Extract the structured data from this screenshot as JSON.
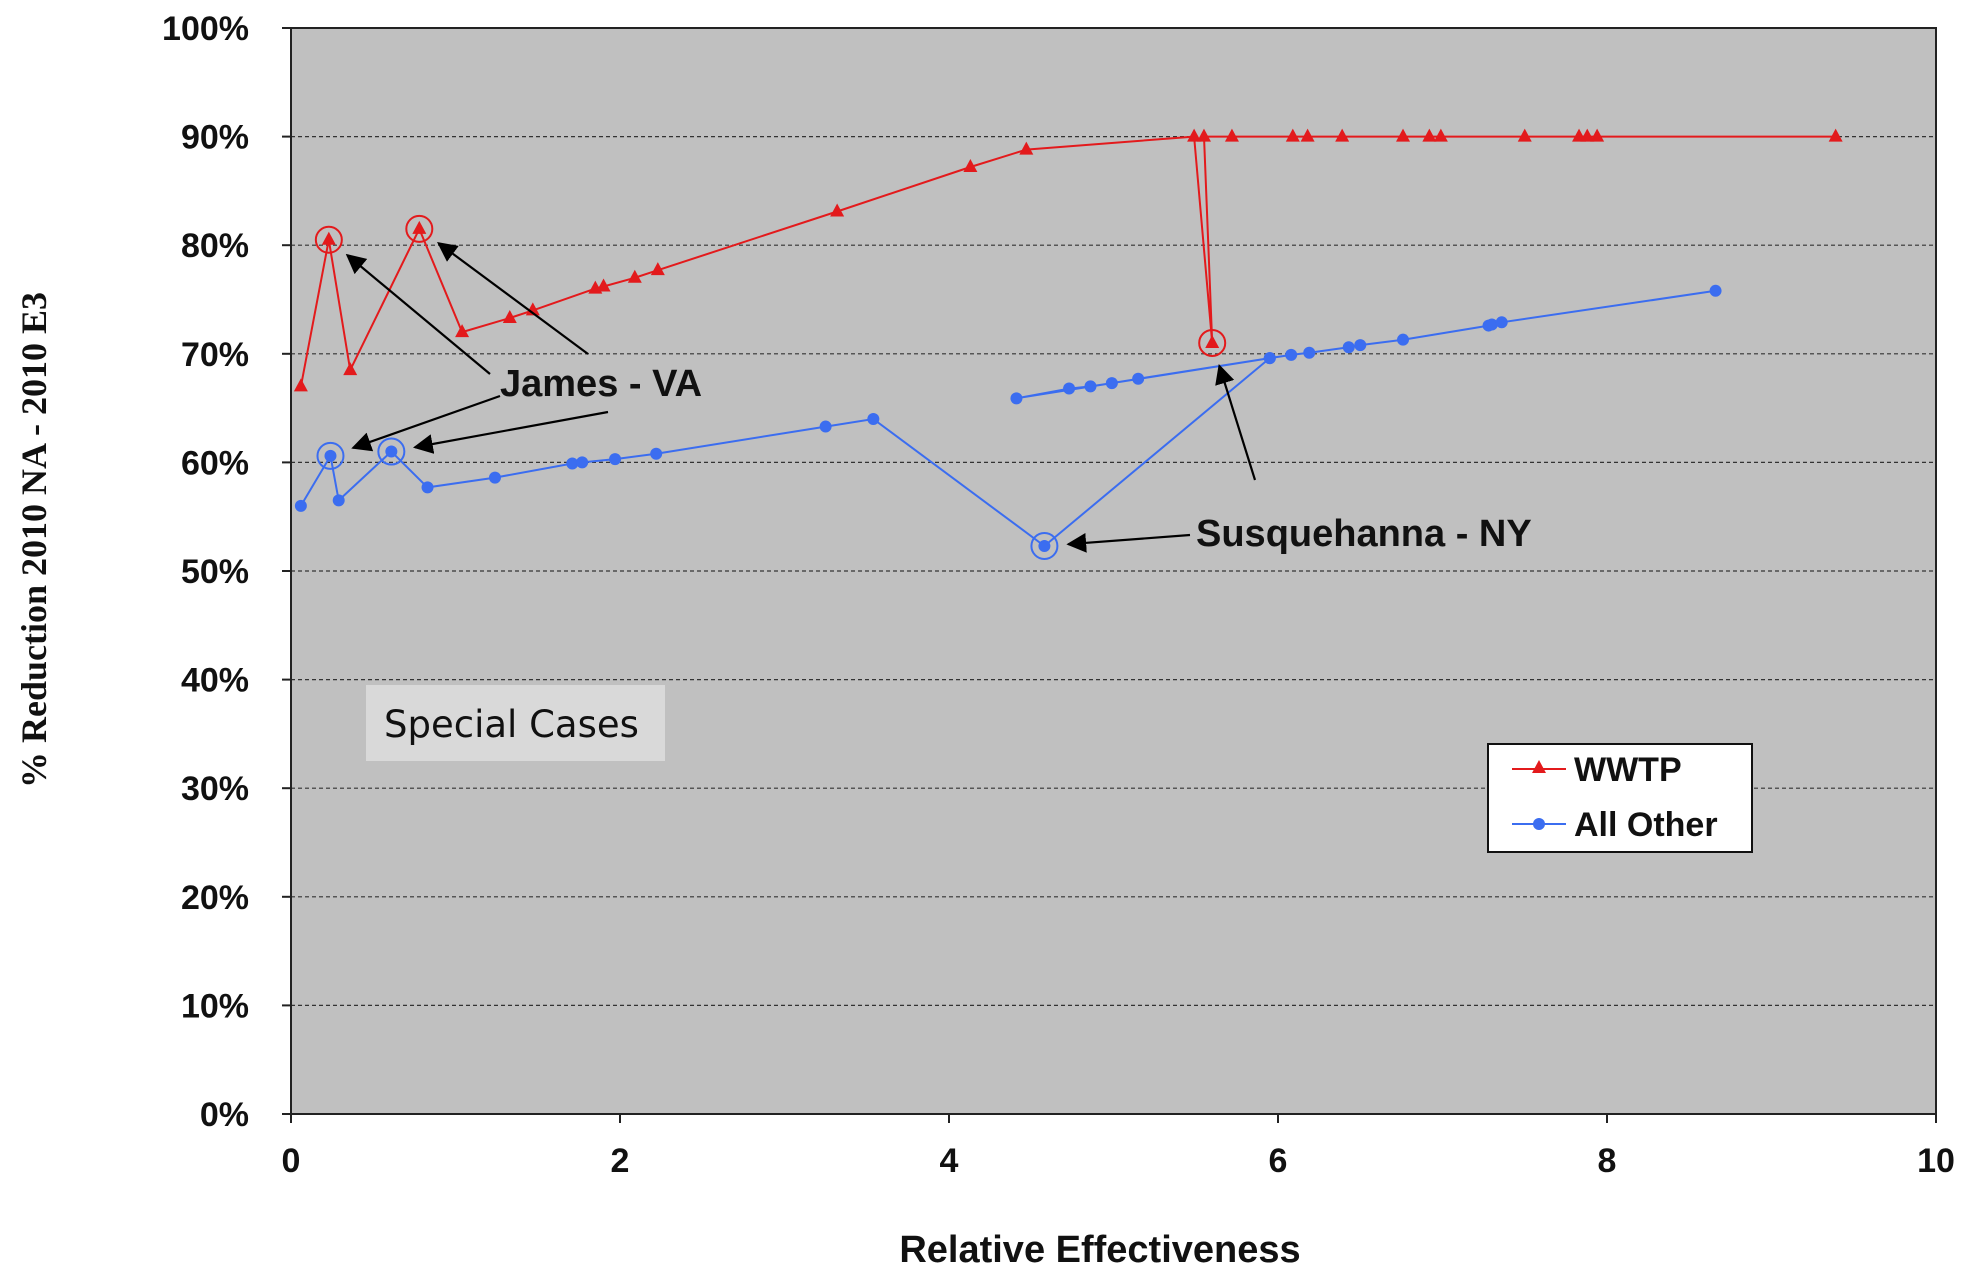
{
  "chart_data": {
    "type": "line",
    "title": "",
    "xlabel": "Relative Effectiveness",
    "ylabel": "% Reduction  2010 NA - 2010 E3",
    "xlim": [
      0,
      10
    ],
    "ylim": [
      0,
      100
    ],
    "x_ticks": [
      0,
      2,
      4,
      6,
      8,
      10
    ],
    "x_tick_labels": [
      "0",
      "2",
      "4",
      "6",
      "8",
      "10"
    ],
    "y_ticks": [
      0,
      10,
      20,
      30,
      40,
      50,
      60,
      70,
      80,
      90,
      100
    ],
    "y_tick_labels": [
      "0%",
      "10%",
      "20%",
      "30%",
      "40%",
      "50%",
      "60%",
      "70%",
      "80%",
      "90%",
      "100%"
    ],
    "grid": "horizontal dashed",
    "plot_background": "#c0c0c0",
    "legend_position": "right",
    "series": [
      {
        "name": "WWTP",
        "color": "#e31a1c",
        "marker": "triangle",
        "points": [
          [
            0.06,
            67.0
          ],
          [
            0.23,
            80.5
          ],
          [
            0.36,
            68.5
          ],
          [
            0.78,
            81.5
          ],
          [
            1.04,
            72.0
          ],
          [
            1.33,
            73.3
          ],
          [
            1.47,
            74.0
          ],
          [
            1.85,
            76.0
          ],
          [
            1.9,
            76.2
          ],
          [
            2.09,
            77.0
          ],
          [
            2.23,
            77.7
          ],
          [
            3.32,
            83.1
          ],
          [
            4.13,
            87.2
          ],
          [
            4.47,
            88.8
          ],
          [
            5.49,
            90.0
          ],
          [
            5.6,
            71.0
          ],
          [
            5.55,
            90.0
          ],
          [
            5.72,
            90.0
          ],
          [
            6.09,
            90.0
          ],
          [
            6.18,
            90.0
          ],
          [
            6.39,
            90.0
          ],
          [
            6.76,
            90.0
          ],
          [
            6.92,
            90.0
          ],
          [
            6.99,
            90.0
          ],
          [
            7.5,
            90.0
          ],
          [
            7.83,
            90.0
          ],
          [
            7.88,
            90.0
          ],
          [
            7.94,
            90.0
          ],
          [
            9.39,
            90.0
          ]
        ]
      },
      {
        "name": "All Other",
        "color": "#3b6df0",
        "marker": "circle",
        "points": [
          [
            0.06,
            56.0
          ],
          [
            0.24,
            60.6
          ],
          [
            0.29,
            56.5
          ],
          [
            0.61,
            61.0
          ],
          [
            0.83,
            57.7
          ],
          [
            1.24,
            58.6
          ],
          [
            1.71,
            59.9
          ],
          [
            1.77,
            60.0
          ],
          [
            1.97,
            60.3
          ],
          [
            2.22,
            60.8
          ],
          [
            3.25,
            63.3
          ],
          [
            3.54,
            64.0
          ],
          [
            4.58,
            52.3
          ],
          [
            5.95,
            69.6
          ],
          [
            4.41,
            65.9
          ],
          [
            4.73,
            66.8
          ],
          [
            4.86,
            67.0
          ],
          [
            4.99,
            67.3
          ],
          [
            5.15,
            67.7
          ],
          [
            5.95,
            69.6
          ],
          [
            6.08,
            69.9
          ],
          [
            6.19,
            70.1
          ],
          [
            6.43,
            70.6
          ],
          [
            6.5,
            70.8
          ],
          [
            6.76,
            71.3
          ],
          [
            7.28,
            72.6
          ],
          [
            7.3,
            72.7
          ],
          [
            7.36,
            72.9
          ],
          [
            8.66,
            75.8
          ]
        ]
      }
    ],
    "highlighted": [
      {
        "series": "WWTP",
        "x": 0.23,
        "y": 80.5
      },
      {
        "series": "WWTP",
        "x": 0.78,
        "y": 81.5
      },
      {
        "series": "WWTP",
        "x": 5.6,
        "y": 71.0
      },
      {
        "series": "All Other",
        "x": 0.24,
        "y": 60.6
      },
      {
        "series": "All Other",
        "x": 0.61,
        "y": 61.0
      },
      {
        "series": "All Other",
        "x": 4.58,
        "y": 52.3
      }
    ],
    "annotations": [
      {
        "text": "James - VA",
        "targets": [
          [
            0.23,
            80.5
          ],
          [
            0.78,
            81.5
          ],
          [
            0.24,
            60.6
          ],
          [
            0.61,
            61.0
          ]
        ]
      },
      {
        "text": "Susquehanna - NY",
        "targets": [
          [
            4.58,
            52.3
          ],
          [
            5.6,
            71.0
          ]
        ]
      }
    ],
    "special_box_label": "Special Cases"
  }
}
